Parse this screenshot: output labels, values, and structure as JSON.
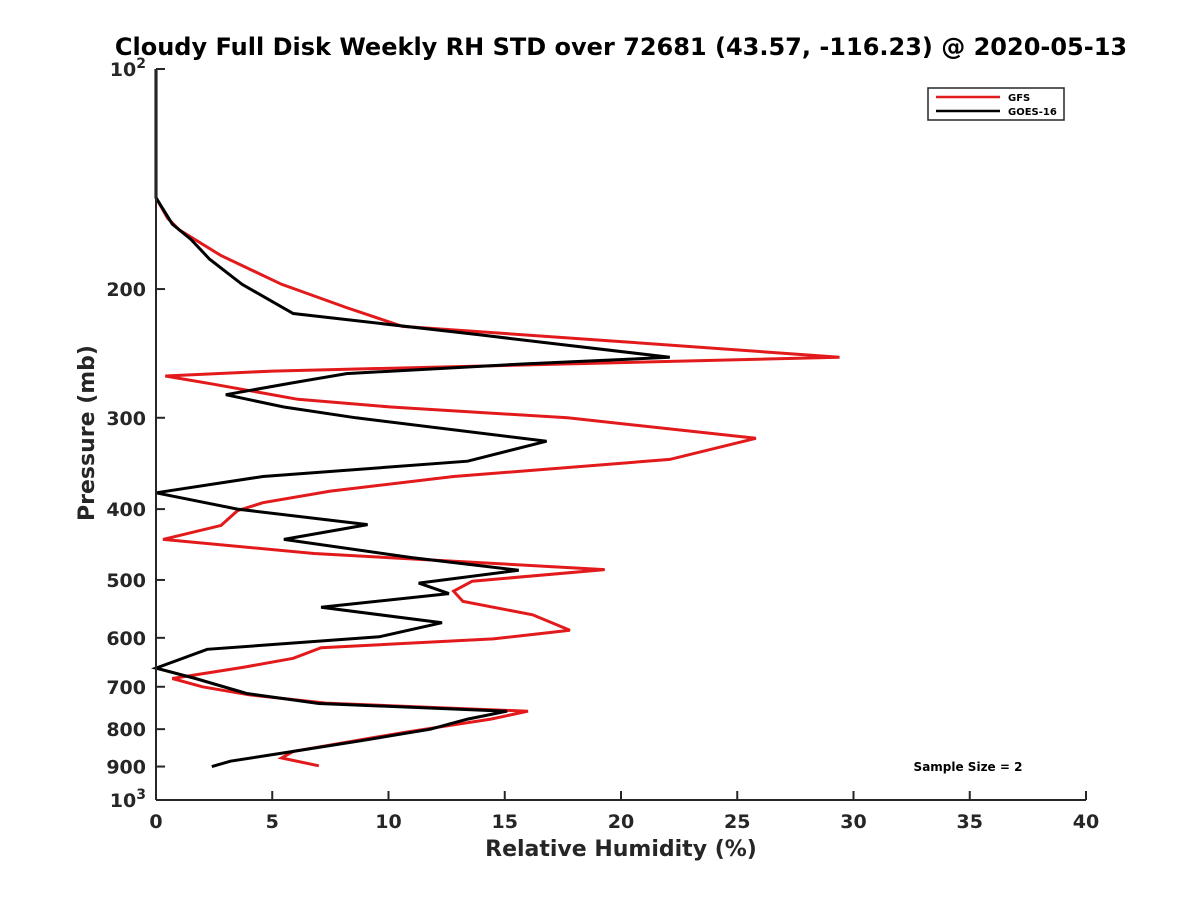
{
  "chart_data": {
    "type": "line",
    "title": "Cloudy Full Disk Weekly RH STD over 72681 (43.57, -116.23) @ 2020-05-13",
    "xlabel": "Relative Humidity (%)",
    "ylabel": "Pressure (mb)",
    "xlim": [
      0,
      40
    ],
    "ylim": [
      100,
      1000
    ],
    "y_scale": "log",
    "y_reversed": true,
    "x_ticks": [
      0,
      5,
      10,
      15,
      20,
      25,
      30,
      35,
      40
    ],
    "x_tick_labels": [
      "0",
      "5",
      "10",
      "15",
      "20",
      "25",
      "30",
      "35",
      "40"
    ],
    "y_ticks": [
      100,
      200,
      300,
      400,
      500,
      600,
      700,
      800,
      900,
      1000
    ],
    "y_tick_labels": [
      {
        "base": "10",
        "exp": "2"
      },
      {
        "base": "200",
        "exp": ""
      },
      {
        "base": "300",
        "exp": ""
      },
      {
        "base": "400",
        "exp": ""
      },
      {
        "base": "500",
        "exp": ""
      },
      {
        "base": "600",
        "exp": ""
      },
      {
        "base": "700",
        "exp": ""
      },
      {
        "base": "800",
        "exp": ""
      },
      {
        "base": "900",
        "exp": ""
      },
      {
        "base": "10",
        "exp": "3"
      }
    ],
    "grid": false,
    "legend_position": "top-right",
    "annotation": "Sample Size = 2",
    "series": [
      {
        "name": "GFS",
        "color": "#e31a1c",
        "points": [
          [
            0,
            100
          ],
          [
            0,
            150
          ],
          [
            0.5,
            160
          ],
          [
            1,
            166
          ],
          [
            2.8,
            180
          ],
          [
            5.4,
            197
          ],
          [
            8.2,
            212
          ],
          [
            10.6,
            225
          ],
          [
            20,
            236
          ],
          [
            29.4,
            248
          ],
          [
            5,
            259
          ],
          [
            0.4,
            263
          ],
          [
            2.5,
            270
          ],
          [
            6.1,
            283
          ],
          [
            10.1,
            290
          ],
          [
            17.7,
            300
          ],
          [
            25.8,
            320
          ],
          [
            22.1,
            342
          ],
          [
            12.8,
            361
          ],
          [
            7.5,
            378
          ],
          [
            4.6,
            392
          ],
          [
            3.5,
            402
          ],
          [
            2.8,
            421
          ],
          [
            0.3,
            440
          ],
          [
            6.8,
            460
          ],
          [
            19.3,
            484
          ],
          [
            13.6,
            502
          ],
          [
            12.8,
            518
          ],
          [
            13.2,
            535
          ],
          [
            16.2,
            558
          ],
          [
            17.8,
            586
          ],
          [
            14.5,
            602
          ],
          [
            7.1,
            619
          ],
          [
            5.9,
            640
          ],
          [
            3.8,
            658
          ],
          [
            0.7,
            682
          ],
          [
            2,
            700
          ],
          [
            4,
            718
          ],
          [
            7.3,
            737
          ],
          [
            16,
            756
          ],
          [
            14.4,
            775
          ],
          [
            10.7,
            808
          ],
          [
            5.9,
            858
          ],
          [
            5.4,
            876
          ],
          [
            7,
            898
          ]
        ]
      },
      {
        "name": "GOES-16",
        "color": "#000000",
        "points": [
          [
            0,
            100
          ],
          [
            0,
            150
          ],
          [
            0.7,
            163
          ],
          [
            1.5,
            171
          ],
          [
            2.3,
            182
          ],
          [
            3.7,
            197
          ],
          [
            5.9,
            216
          ],
          [
            13.9,
            231
          ],
          [
            22.1,
            248
          ],
          [
            16,
            253
          ],
          [
            8.2,
            261
          ],
          [
            5.8,
            269
          ],
          [
            3,
            279
          ],
          [
            5.5,
            290
          ],
          [
            8.6,
            300
          ],
          [
            16.8,
            323
          ],
          [
            13.4,
            344
          ],
          [
            4.6,
            361
          ],
          [
            0,
            380
          ],
          [
            3.5,
            400
          ],
          [
            9.1,
            420
          ],
          [
            5.5,
            440
          ],
          [
            11,
            466
          ],
          [
            15.6,
            485
          ],
          [
            11.3,
            505
          ],
          [
            12.6,
            522
          ],
          [
            7.1,
            545
          ],
          [
            12.3,
            572
          ],
          [
            9.6,
            598
          ],
          [
            2.2,
            622
          ],
          [
            0,
            660
          ],
          [
            1.7,
            682
          ],
          [
            3.9,
            715
          ],
          [
            7,
            738
          ],
          [
            15.1,
            756
          ],
          [
            13.4,
            775
          ],
          [
            11.8,
            800
          ],
          [
            8.8,
            830
          ],
          [
            5.7,
            860
          ],
          [
            3.2,
            885
          ],
          [
            2.4,
            900
          ]
        ]
      }
    ]
  }
}
